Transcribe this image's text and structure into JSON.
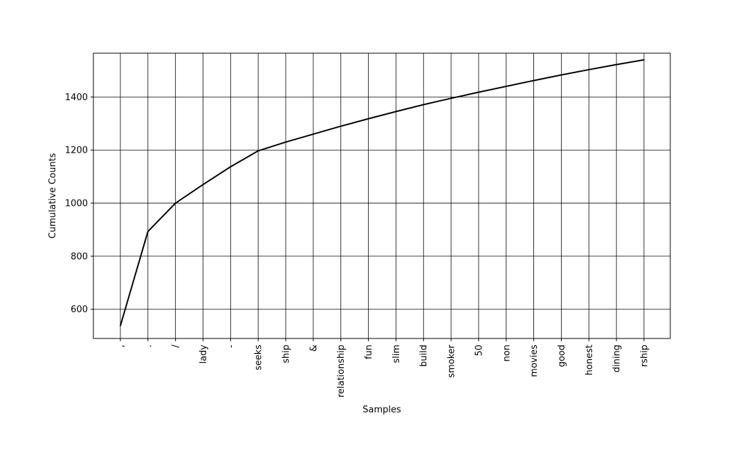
{
  "chart_data": {
    "type": "line",
    "title": "",
    "xlabel": "Samples",
    "ylabel": "Cumulative Counts",
    "categories": [
      ",",
      ".",
      "/",
      "lady",
      "-",
      "seeks",
      "ship",
      "&",
      "relationship",
      "fun",
      "slim",
      "build",
      "smoker",
      "50",
      "non",
      "movies",
      "good",
      "honest",
      "dining",
      "rship"
    ],
    "series": [
      {
        "values": [
          538,
          893,
          1000,
          1070,
          1137,
          1197,
          1230,
          1260,
          1290,
          1318,
          1345,
          1371,
          1395,
          1418,
          1440,
          1462,
          1483,
          1503,
          1522,
          1540
        ]
      }
    ],
    "ylim": [
      490,
      1565
    ],
    "yticks": [
      600,
      800,
      1000,
      1200,
      1400
    ],
    "grid": true,
    "line_color": "#000000"
  }
}
